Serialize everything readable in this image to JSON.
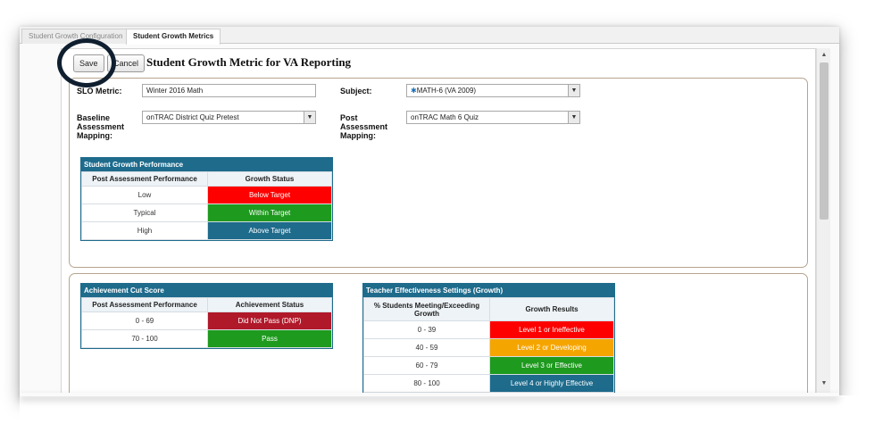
{
  "tabs": [
    {
      "label": "Student Growth Configuration"
    },
    {
      "label": "Student Growth Metrics"
    }
  ],
  "toolbar": {
    "save_label": "Save",
    "cancel_label": "Cancel"
  },
  "page_title": "Student Growth Metric for VA Reporting",
  "form": {
    "slo_metric_label": "SLO Metric:",
    "slo_metric_value": "Winter 2016 Math",
    "subject_label": "Subject:",
    "subject_value": "MATH-6 (VA 2009)",
    "baseline_label": "Baseline Assessment Mapping:",
    "baseline_value": "onTRAC District Quiz Pretest",
    "post_label": "Post Assessment Mapping:",
    "post_value": "onTRAC Math 6 Quiz"
  },
  "growth_table": {
    "title": "Student Growth Performance",
    "headers": [
      "Post Assessment Performance",
      "Growth Status"
    ],
    "rows": [
      {
        "performance": "Low",
        "status": "Below Target",
        "color": "#ff0000"
      },
      {
        "performance": "Typical",
        "status": "Within Target",
        "color": "#1e9a1e"
      },
      {
        "performance": "High",
        "status": "Above Target",
        "color": "#1e6b8c"
      }
    ]
  },
  "cut_table": {
    "title": "Achievement Cut Score",
    "headers": [
      "Post Assessment Performance",
      "Achievement Status"
    ],
    "rows": [
      {
        "range": "0 - 69",
        "status": "Did Not Pass (DNP)",
        "color": "#b0192a"
      },
      {
        "range": "70 - 100",
        "status": "Pass",
        "color": "#1e9a1e"
      }
    ]
  },
  "teacher_table": {
    "title": "Teacher Effectiveness Settings (Growth)",
    "headers": [
      "% Students Meeting/Exceeding Growth",
      "Growth Results"
    ],
    "rows": [
      {
        "range": "0 - 39",
        "result": "Level 1 or Ineffective",
        "color": "#ff0000"
      },
      {
        "range": "40 - 59",
        "result": "Level 2 or Developing",
        "color": "#f5a500"
      },
      {
        "range": "60 - 79",
        "result": "Level 3 or Effective",
        "color": "#1e9a1e"
      },
      {
        "range": "80 - 100",
        "result": "Level 4 or Highly Effective",
        "color": "#1e6b8c"
      }
    ]
  }
}
